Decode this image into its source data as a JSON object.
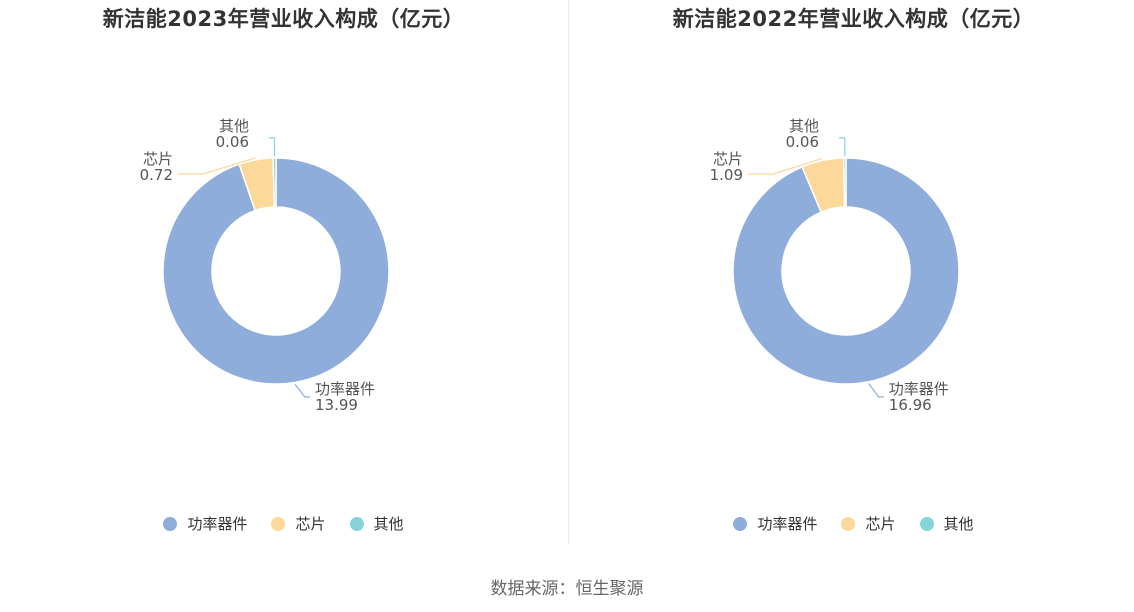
{
  "source": "数据来源：恒生聚源",
  "colors": {
    "功率器件": "#8eadda",
    "芯片": "#fcd89a",
    "其他": "#86d3da"
  },
  "chart_data": [
    {
      "type": "pie",
      "title": "新洁能2023年营业收入构成（亿元）",
      "categories": [
        "功率器件",
        "芯片",
        "其他"
      ],
      "values": [
        13.99,
        0.72,
        0.06
      ],
      "value_labels": [
        "13.99",
        "0.72",
        "0.06"
      ],
      "legend": "bottom"
    },
    {
      "type": "pie",
      "title": "新洁能2022年营业收入构成（亿元）",
      "categories": [
        "功率器件",
        "芯片",
        "其他"
      ],
      "values": [
        16.96,
        1.09,
        0.06
      ],
      "value_labels": [
        "16.96",
        "1.09",
        "0.06"
      ],
      "legend": "bottom"
    }
  ]
}
